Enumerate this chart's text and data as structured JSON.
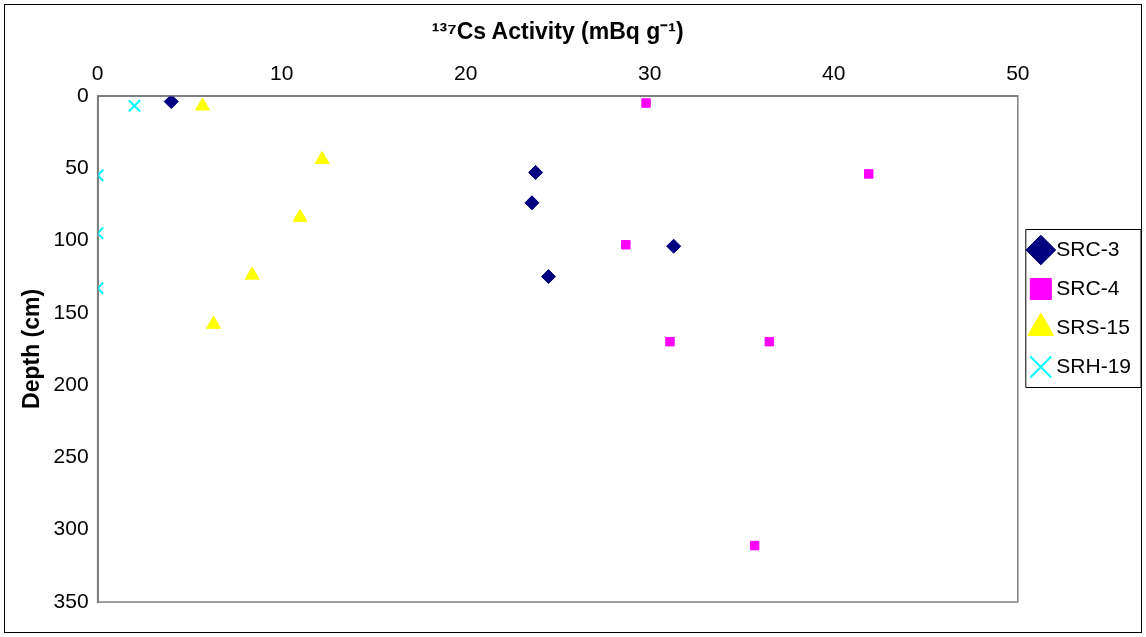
{
  "chart_data": {
    "type": "scatter",
    "xlabel": "¹³⁷Cs Activity (mBq g⁻¹)",
    "ylabel": "Depth (cm)",
    "xlim": [
      0,
      50
    ],
    "xticks": [
      0,
      10,
      20,
      30,
      40,
      50
    ],
    "ylim": [
      350,
      0
    ],
    "yticks": [
      0,
      50,
      100,
      150,
      200,
      250,
      300,
      350
    ],
    "grid": false,
    "legend": "right",
    "series": [
      {
        "name": "SRC-3",
        "color": "#000080",
        "marker": "diamond",
        "x": [
          4.0,
          23.8,
          23.6,
          31.3,
          24.5
        ],
        "values": [
          4,
          53,
          74,
          104,
          125
        ]
      },
      {
        "name": "SRC-4",
        "color": "#ff00ff",
        "marker": "square",
        "x": [
          29.8,
          41.9,
          28.7,
          31.1,
          36.5,
          35.7
        ],
        "values": [
          5,
          54,
          103,
          170,
          170,
          311
        ]
      },
      {
        "name": "SRS-15",
        "color": "#ffff00",
        "marker": "triangle",
        "x": [
          5.7,
          12.2,
          11.0,
          8.4,
          6.3
        ],
        "values": [
          7,
          44,
          84,
          124,
          158
        ]
      },
      {
        "name": "SRH-19",
        "color": "#00ffff",
        "marker": "cross",
        "x": [
          2.0,
          0,
          0,
          0
        ],
        "values": [
          7,
          55,
          95,
          133
        ]
      }
    ]
  }
}
